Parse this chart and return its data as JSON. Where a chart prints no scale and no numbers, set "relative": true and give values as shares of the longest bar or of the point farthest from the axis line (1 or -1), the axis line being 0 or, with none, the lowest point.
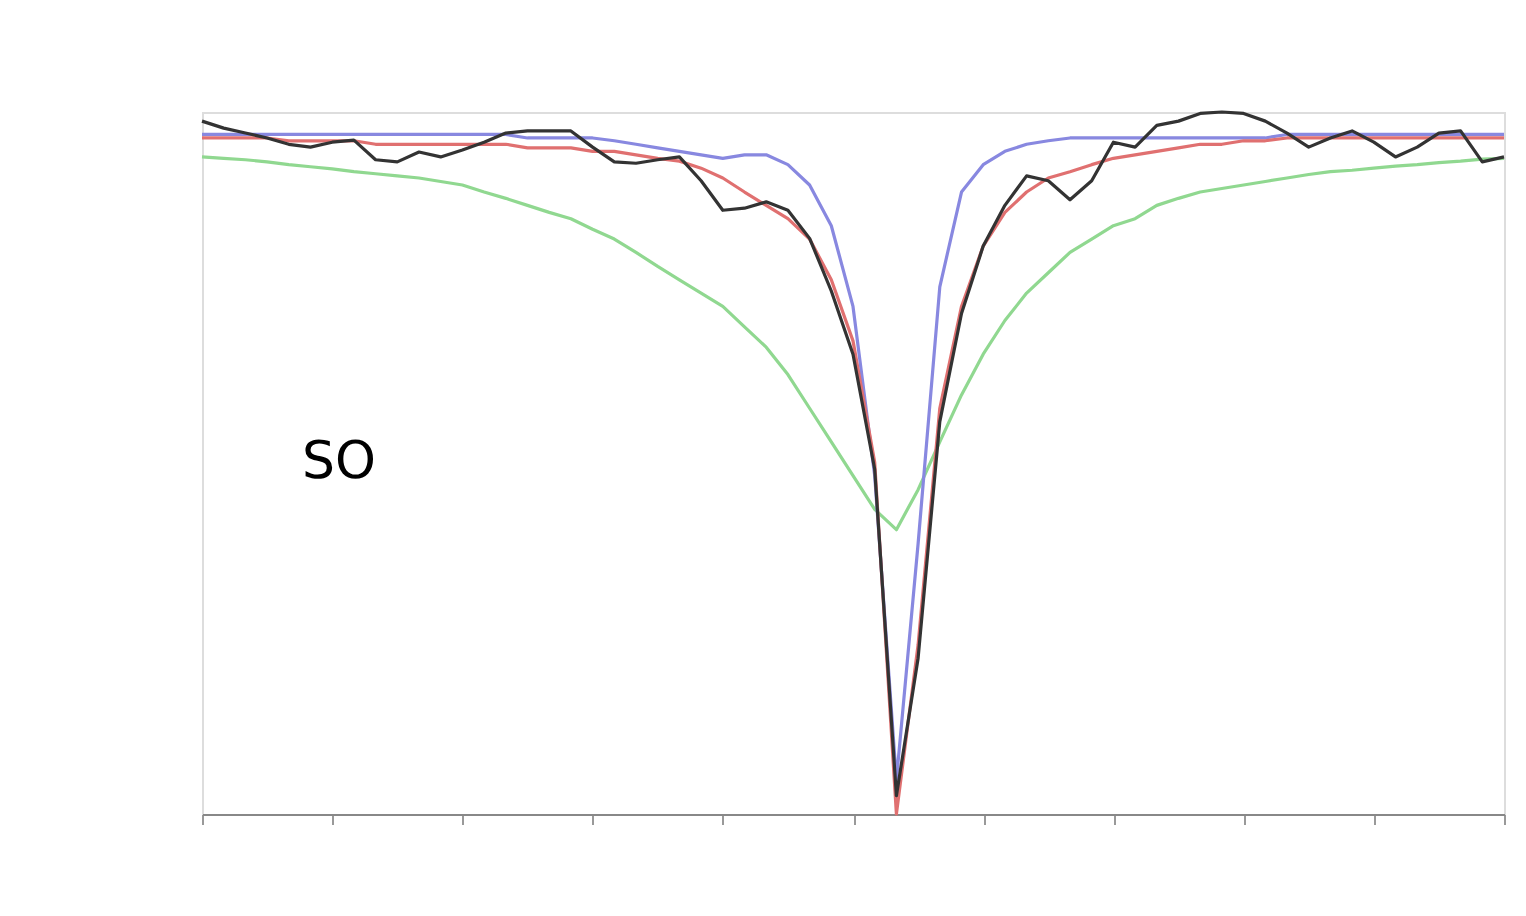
{
  "chart_data": {
    "type": "line",
    "relative": true,
    "tick_labels": false,
    "grid": false,
    "categories": [
      null,
      null,
      null,
      null,
      null,
      null,
      null,
      null,
      null,
      null,
      null,
      null,
      null,
      null,
      null,
      null,
      null,
      null,
      null,
      null,
      null,
      null,
      null,
      null,
      null,
      null,
      null,
      null,
      null,
      null,
      null,
      null,
      null,
      null,
      null,
      null,
      null,
      null,
      null,
      null,
      null,
      null,
      null,
      null,
      null,
      null,
      null,
      null,
      null,
      null,
      null,
      null,
      null,
      null,
      null,
      null,
      null,
      null,
      null,
      null,
      null
    ],
    "annotations": [
      "SO"
    ],
    "series": [
      {
        "color": "#90d890",
        "values": [
          0.936,
          0.934,
          0.932,
          0.929,
          0.925,
          0.922,
          0.919,
          0.915,
          0.912,
          0.909,
          0.906,
          0.901,
          0.896,
          0.886,
          0.877,
          0.867,
          0.857,
          0.848,
          0.833,
          0.819,
          0.8,
          0.78,
          0.761,
          0.742,
          0.723,
          0.694,
          0.665,
          0.626,
          0.578,
          0.53,
          0.482,
          0.434,
          0.405,
          0.462,
          0.53,
          0.597,
          0.655,
          0.703,
          0.742,
          0.771,
          0.8,
          0.819,
          0.838,
          0.848,
          0.867,
          0.877,
          0.886,
          0.891,
          0.896,
          0.901,
          0.906,
          0.911,
          0.915,
          0.917,
          0.92,
          0.923,
          0.925,
          0.928,
          0.93,
          0.933,
          0.934
        ]
      },
      {
        "color": "#8888e0",
        "values": [
          0.968,
          0.968,
          0.968,
          0.968,
          0.968,
          0.968,
          0.968,
          0.968,
          0.968,
          0.968,
          0.968,
          0.968,
          0.968,
          0.968,
          0.968,
          0.963,
          0.963,
          0.963,
          0.963,
          0.959,
          0.954,
          0.949,
          0.944,
          0.939,
          0.934,
          0.939,
          0.939,
          0.925,
          0.896,
          0.838,
          0.723,
          0.482,
          0.048,
          0.385,
          0.751,
          0.886,
          0.925,
          0.944,
          0.954,
          0.959,
          0.963,
          0.963,
          0.963,
          0.963,
          0.963,
          0.963,
          0.963,
          0.963,
          0.963,
          0.963,
          0.968,
          0.968,
          0.968,
          0.968,
          0.968,
          0.968,
          0.968,
          0.968,
          0.968,
          0.968,
          0.968
        ]
      },
      {
        "color": "#e07070",
        "values": [
          0.963,
          0.963,
          0.963,
          0.963,
          0.959,
          0.959,
          0.959,
          0.959,
          0.954,
          0.954,
          0.954,
          0.954,
          0.954,
          0.954,
          0.954,
          0.949,
          0.949,
          0.949,
          0.944,
          0.944,
          0.939,
          0.934,
          0.93,
          0.92,
          0.906,
          0.886,
          0.867,
          0.848,
          0.819,
          0.761,
          0.674,
          0.501,
          0,
          0.241,
          0.578,
          0.723,
          0.809,
          0.857,
          0.886,
          0.906,
          0.915,
          0.925,
          0.934,
          0.939,
          0.944,
          0.949,
          0.954,
          0.954,
          0.959,
          0.959,
          0.963,
          0.963,
          0.963,
          0.963,
          0.963,
          0.963,
          0.963,
          0.963,
          0.963,
          0.963,
          0.963
        ]
      },
      {
        "color": "#333333",
        "values": [
          0.987,
          0.977,
          0.97,
          0.963,
          0.954,
          0.95,
          0.957,
          0.96,
          0.932,
          0.929,
          0.943,
          0.936,
          0.946,
          0.957,
          0.97,
          0.973,
          0.973,
          0.973,
          0.95,
          0.929,
          0.927,
          0.932,
          0.936,
          0.902,
          0.86,
          0.863,
          0.872,
          0.86,
          0.82,
          0.745,
          0.655,
          0.491,
          0.026,
          0.222,
          0.559,
          0.713,
          0.809,
          0.867,
          0.909,
          0.902,
          0.875,
          0.902,
          0.957,
          0.95,
          0.981,
          0.987,
          0.998,
          1,
          0.998,
          0.987,
          0.97,
          0.95,
          0.963,
          0.973,
          0.957,
          0.936,
          0.95,
          0.97,
          0.973,
          0.929,
          0.936
        ]
      }
    ]
  }
}
